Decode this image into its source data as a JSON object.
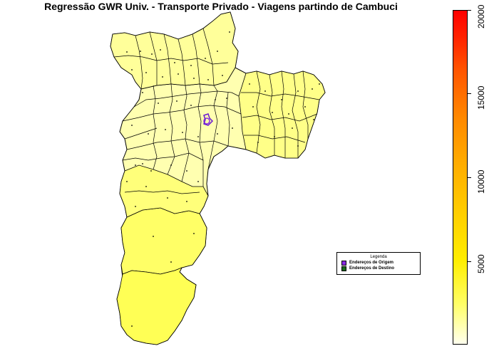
{
  "title": "Regressão GWR Univ. - Transporte Privado - Viagens partindo de Cambuci",
  "legend": {
    "title": "Legenda",
    "items": [
      {
        "label": "Endereços de Origem",
        "color": "#8a2be2"
      },
      {
        "label": "Endereços de Destino",
        "color": "#1a6b1a"
      }
    ]
  },
  "colorbar": {
    "min": 0,
    "max": 20000,
    "ticks": [
      "5000",
      "10000",
      "15000",
      "20000"
    ],
    "colors": [
      "#ffffee",
      "#ffff66",
      "#ffee00",
      "#ffaa00",
      "#ff5500",
      "#ff0000"
    ]
  },
  "map": {
    "fill_light": "#ffffb8",
    "fill_mid": "#ffff80",
    "fill_south": "#ffff55",
    "border_color": "#000000",
    "origin_color": "#8a2be2",
    "destination_color": "#1a6b1a"
  }
}
